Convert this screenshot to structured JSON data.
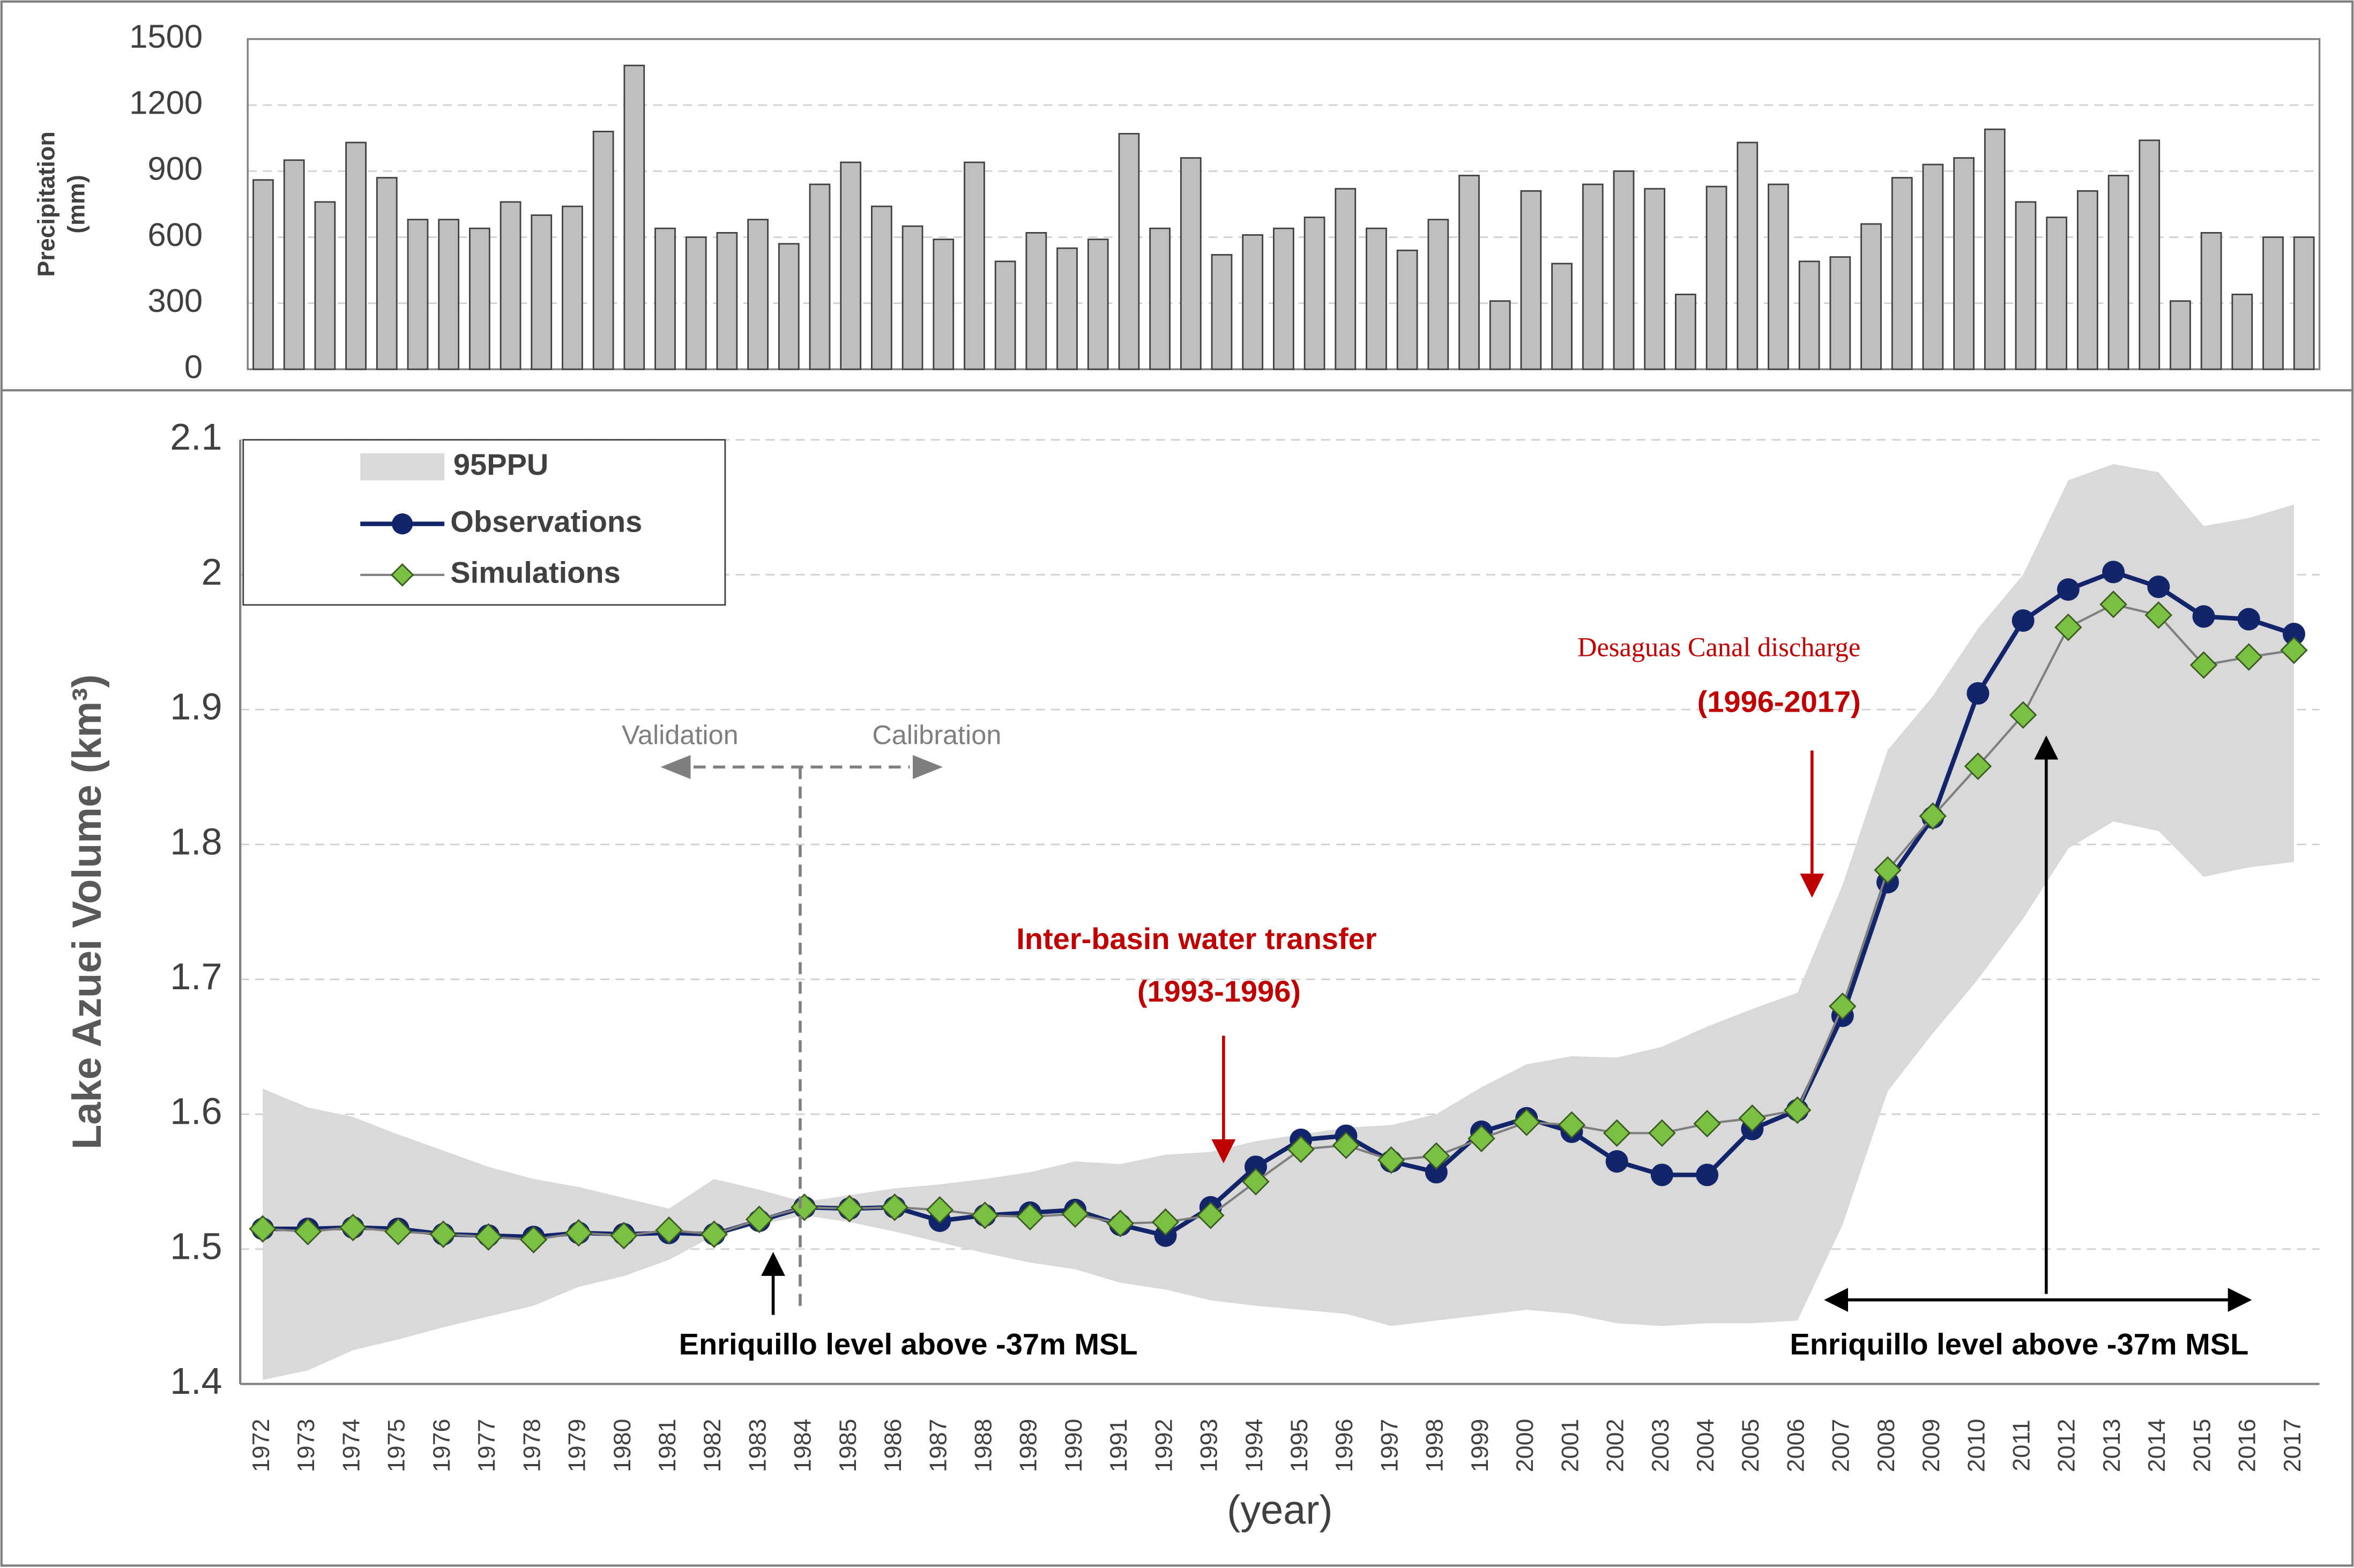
{
  "chart_data": [
    {
      "type": "bar",
      "ylabel": [
        "Precipitation",
        "(mm)"
      ],
      "color": "#bfbfbf",
      "categories": [
        null,
        null,
        null,
        null,
        null,
        null,
        null,
        null,
        null,
        null,
        null,
        null,
        null,
        null,
        null,
        null,
        null,
        null,
        null,
        null,
        null,
        null,
        null,
        null,
        null,
        null,
        null,
        null,
        null,
        null,
        null,
        null,
        null,
        null,
        null,
        null,
        null,
        null,
        null,
        null,
        null,
        null,
        null,
        null,
        null,
        null,
        null,
        null,
        null,
        null,
        null,
        null,
        null,
        null,
        null,
        null,
        null,
        null,
        null,
        null,
        null,
        null,
        null,
        null,
        null,
        null,
        null
      ],
      "values": [
        860,
        950,
        760,
        1030,
        870,
        680,
        680,
        640,
        760,
        700,
        740,
        1080,
        1380,
        640,
        600,
        620,
        680,
        570,
        840,
        940,
        740,
        650,
        590,
        940,
        490,
        620,
        550,
        590,
        1070,
        640,
        960,
        520,
        610,
        640,
        690,
        820,
        640,
        540,
        680,
        880,
        310,
        810,
        480,
        840,
        900,
        820,
        340,
        830,
        1030,
        840,
        490,
        510,
        660,
        870,
        930,
        960,
        1090,
        760,
        690,
        810,
        880,
        1040,
        310,
        620,
        340,
        600,
        600
      ],
      "ylim": [
        0,
        1500
      ],
      "yticks": [
        0,
        300,
        600,
        900,
        1200,
        1500
      ],
      "grid": true
    },
    {
      "type": "line",
      "ylabel": "Lake Azuei Volume (km³)",
      "xlabel": "(year)",
      "categories": [
        "1972",
        "1973",
        "1974",
        "1975",
        "1976",
        "1977",
        "1978",
        "1979",
        "1980",
        "1981",
        "1982",
        "1983",
        "1984",
        "1985",
        "1986",
        "1987",
        "1988",
        "1989",
        "1990",
        "1991",
        "1992",
        "1993",
        "1994",
        "1995",
        "1996",
        "1997",
        "1998",
        "1999",
        "2000",
        "2001",
        "2002",
        "2003",
        "2004",
        "2005",
        "2006",
        "2007",
        "2008",
        "2009",
        "2010",
        "2011",
        "2012",
        "2013",
        "2014",
        "2015",
        "2016",
        "2017"
      ],
      "series": [
        {
          "name": "95PPU",
          "color": "#d9d9d9",
          "upper": [
            1.619,
            1.605,
            1.598,
            1.585,
            1.573,
            1.561,
            1.552,
            1.546,
            1.538,
            1.53,
            1.552,
            1.544,
            1.535,
            1.54,
            1.545,
            1.548,
            1.552,
            1.557,
            1.565,
            1.563,
            1.57,
            1.572,
            1.58,
            1.585,
            1.59,
            1.592,
            1.6,
            1.62,
            1.637,
            1.643,
            1.642,
            1.65,
            1.665,
            1.678,
            1.69,
            1.77,
            1.87,
            1.91,
            1.96,
            2.0,
            2.07,
            2.082,
            2.076,
            2.036,
            2.042,
            2.052
          ],
          "lower": [
            1.403,
            1.41,
            1.425,
            1.433,
            1.442,
            1.45,
            1.458,
            1.472,
            1.48,
            1.492,
            1.51,
            1.518,
            1.525,
            1.52,
            1.513,
            1.505,
            1.497,
            1.49,
            1.485,
            1.475,
            1.47,
            1.462,
            1.458,
            1.455,
            1.452,
            1.443,
            1.447,
            1.451,
            1.455,
            1.452,
            1.445,
            1.443,
            1.445,
            1.445,
            1.447,
            1.518,
            1.617,
            1.66,
            1.7,
            1.745,
            1.797,
            1.817,
            1.81,
            1.776,
            1.783,
            1.787
          ]
        },
        {
          "name": "Observations",
          "color": "#12256b",
          "values": [
            1.515,
            1.515,
            1.516,
            1.515,
            1.511,
            1.51,
            1.509,
            1.512,
            1.511,
            1.512,
            1.511,
            1.521,
            1.531,
            1.53,
            1.531,
            1.521,
            1.525,
            1.527,
            1.529,
            1.518,
            1.51,
            1.531,
            1.561,
            1.581,
            1.584,
            1.565,
            1.557,
            1.587,
            1.597,
            1.587,
            1.565,
            1.555,
            1.555,
            1.589,
            1.603,
            1.673,
            1.772,
            1.82,
            1.912,
            1.966,
            1.989,
            2.002,
            1.991,
            1.969,
            1.967,
            1.956
          ]
        },
        {
          "name": "Simulations",
          "color": "#7ac143",
          "values": [
            1.515,
            1.513,
            1.516,
            1.513,
            1.511,
            1.509,
            1.507,
            1.512,
            1.51,
            1.514,
            1.511,
            1.522,
            1.531,
            1.53,
            1.531,
            1.529,
            1.525,
            1.524,
            1.526,
            1.519,
            1.52,
            1.525,
            1.55,
            1.574,
            1.577,
            1.566,
            1.569,
            1.582,
            1.594,
            1.592,
            1.586,
            1.586,
            1.593,
            1.597,
            1.603,
            1.68,
            1.781,
            1.821,
            1.858,
            1.896,
            1.961,
            1.978,
            1.97,
            1.933,
            1.939,
            1.944
          ]
        }
      ],
      "ylim": [
        1.4,
        2.1
      ],
      "yticks": [
        1.4,
        1.5,
        1.6,
        1.7,
        1.8,
        1.9,
        2,
        2.1
      ],
      "grid": true,
      "legend": "upper left",
      "annotations": [
        "Validation",
        "Calibration",
        "Inter-basin water transfer",
        "(1993-1996)",
        "Desaguas Canal discharge",
        "(1996-2017)",
        "Enriquillo level above -37m MSL",
        "Enriquillo level above -37m MSL"
      ]
    }
  ]
}
